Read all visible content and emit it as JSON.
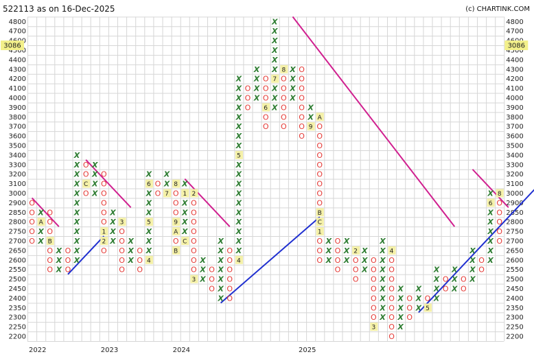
{
  "header": {
    "title": "522113 as on 16-Dec-2025",
    "copyright": "(c) CHARTINK.COM"
  },
  "chart_data": {
    "type": "point-and-figure",
    "box_size": 50,
    "y_ticks": [
      4800,
      4700,
      4600,
      4500,
      4400,
      4300,
      4200,
      4100,
      4000,
      3900,
      3800,
      3700,
      3600,
      3500,
      3400,
      3300,
      3200,
      3100,
      3000,
      2900,
      2850,
      2800,
      2750,
      2700,
      2650,
      2600,
      2550,
      2500,
      2450,
      2400,
      2350,
      2300,
      2250,
      2200
    ],
    "x_labels": [
      {
        "col": 0,
        "label": "2022"
      },
      {
        "col": 8,
        "label": "2023"
      },
      {
        "col": 16,
        "label": "2024"
      },
      {
        "col": 30,
        "label": "2025"
      }
    ],
    "current_price": "3086",
    "current_price_level": 30.5,
    "columns": [
      {
        "type": "O",
        "top": 14,
        "bottom": 10,
        "marks": []
      },
      {
        "type": "X",
        "top": 13,
        "bottom": 10,
        "marks": [
          {
            "level": 12,
            "text": "A"
          }
        ]
      },
      {
        "type": "O",
        "top": 13,
        "bottom": 7,
        "marks": [
          {
            "level": 10,
            "text": "B"
          }
        ]
      },
      {
        "type": "X",
        "top": 9,
        "bottom": 7,
        "marks": []
      },
      {
        "type": "O",
        "top": 9,
        "bottom": 7,
        "marks": []
      },
      {
        "type": "X",
        "top": 19,
        "bottom": 8,
        "marks": []
      },
      {
        "type": "O",
        "top": 18,
        "bottom": 15,
        "marks": [
          {
            "level": 16,
            "text": "C"
          }
        ]
      },
      {
        "type": "X",
        "top": 18,
        "bottom": 15,
        "marks": []
      },
      {
        "type": "O",
        "top": 17,
        "bottom": 9,
        "marks": [
          {
            "level": 11,
            "text": "1"
          },
          {
            "level": 10,
            "text": "2"
          }
        ]
      },
      {
        "type": "X",
        "top": 13,
        "bottom": 10,
        "marks": []
      },
      {
        "type": "O",
        "top": 12,
        "bottom": 7,
        "marks": [
          {
            "level": 12,
            "text": "3"
          }
        ]
      },
      {
        "type": "X",
        "top": 10,
        "bottom": 8,
        "marks": []
      },
      {
        "type": "O",
        "top": 9,
        "bottom": 7,
        "marks": []
      },
      {
        "type": "X",
        "top": 17,
        "bottom": 8,
        "marks": [
          {
            "level": 16,
            "text": "6"
          },
          {
            "level": 12,
            "text": "5"
          },
          {
            "level": 8,
            "text": "4"
          }
        ]
      },
      {
        "type": "O",
        "top": 16,
        "bottom": 15,
        "marks": []
      },
      {
        "type": "X",
        "top": 17,
        "bottom": 15,
        "marks": [
          {
            "level": 15,
            "text": "7"
          }
        ]
      },
      {
        "type": "O",
        "top": 16,
        "bottom": 9,
        "marks": [
          {
            "level": 16,
            "text": "8"
          },
          {
            "level": 12,
            "text": "9"
          },
          {
            "level": 11,
            "text": "A"
          },
          {
            "level": 9,
            "text": "B"
          }
        ]
      },
      {
        "type": "X",
        "top": 16,
        "bottom": 10,
        "marks": [
          {
            "level": 15,
            "text": "1"
          },
          {
            "level": 10,
            "text": "C"
          }
        ]
      },
      {
        "type": "O",
        "top": 15,
        "bottom": 6,
        "marks": [
          {
            "level": 15,
            "text": "2"
          },
          {
            "level": 6,
            "text": "3"
          }
        ]
      },
      {
        "type": "X",
        "top": 8,
        "bottom": 6,
        "marks": []
      },
      {
        "type": "O",
        "top": 7,
        "bottom": 5,
        "marks": []
      },
      {
        "type": "X",
        "top": 10,
        "bottom": 4,
        "marks": []
      },
      {
        "type": "O",
        "top": 9,
        "bottom": 4,
        "marks": []
      },
      {
        "type": "X",
        "top": 27,
        "bottom": 8,
        "marks": [
          {
            "level": 19,
            "text": "5"
          },
          {
            "level": 8,
            "text": "4"
          }
        ]
      },
      {
        "type": "O",
        "top": 26,
        "bottom": 24,
        "marks": []
      },
      {
        "type": "X",
        "top": 28,
        "bottom": 25,
        "marks": []
      },
      {
        "type": "O",
        "top": 27,
        "bottom": 22,
        "marks": [
          {
            "level": 24,
            "text": "6"
          }
        ]
      },
      {
        "type": "X",
        "top": 33,
        "bottom": 24,
        "marks": [
          {
            "level": 27,
            "text": "7"
          }
        ]
      },
      {
        "type": "O",
        "top": 28,
        "bottom": 22,
        "marks": [
          {
            "level": 28,
            "text": "8"
          }
        ]
      },
      {
        "type": "X",
        "top": 28,
        "bottom": 25,
        "marks": []
      },
      {
        "type": "O",
        "top": 28,
        "bottom": 21,
        "marks": []
      },
      {
        "type": "X",
        "top": 24,
        "bottom": 22,
        "marks": [
          {
            "level": 22,
            "text": "9"
          }
        ]
      },
      {
        "type": "O",
        "top": 23,
        "bottom": 8,
        "marks": [
          {
            "level": 23,
            "text": "A"
          },
          {
            "level": 13,
            "text": "B"
          },
          {
            "level": 12,
            "text": "C"
          },
          {
            "level": 11,
            "text": "1"
          }
        ]
      },
      {
        "type": "X",
        "top": 10,
        "bottom": 8,
        "marks": []
      },
      {
        "type": "O",
        "top": 10,
        "bottom": 7,
        "marks": []
      },
      {
        "type": "X",
        "top": 10,
        "bottom": 8,
        "marks": []
      },
      {
        "type": "O",
        "top": 9,
        "bottom": 6,
        "marks": [
          {
            "level": 9,
            "text": "2"
          }
        ]
      },
      {
        "type": "X",
        "top": 9,
        "bottom": 7,
        "marks": []
      },
      {
        "type": "O",
        "top": 8,
        "bottom": 1,
        "marks": [
          {
            "level": 1,
            "text": "3"
          }
        ]
      },
      {
        "type": "X",
        "top": 10,
        "bottom": 2,
        "marks": []
      },
      {
        "type": "O",
        "top": 9,
        "bottom": 0,
        "marks": [
          {
            "level": 9,
            "text": "4"
          }
        ]
      },
      {
        "type": "X",
        "top": 5,
        "bottom": 1,
        "marks": []
      },
      {
        "type": "O",
        "top": 4,
        "bottom": 2,
        "marks": []
      },
      {
        "type": "X",
        "top": 5,
        "bottom": 3,
        "marks": []
      },
      {
        "type": "O",
        "top": 4,
        "bottom": 3,
        "marks": [
          {
            "level": 3,
            "text": "5"
          }
        ]
      },
      {
        "type": "X",
        "top": 7,
        "bottom": 4,
        "marks": []
      },
      {
        "type": "O",
        "top": 6,
        "bottom": 5,
        "marks": []
      },
      {
        "type": "X",
        "top": 7,
        "bottom": 5,
        "marks": []
      },
      {
        "type": "O",
        "top": 6,
        "bottom": 5,
        "marks": []
      },
      {
        "type": "X",
        "top": 9,
        "bottom": 6,
        "marks": []
      },
      {
        "type": "O",
        "top": 8,
        "bottom": 7,
        "marks": []
      },
      {
        "type": "X",
        "top": 15,
        "bottom": 8,
        "marks": [
          {
            "level": 14,
            "text": "6"
          }
        ]
      },
      {
        "type": "O",
        "top": 15,
        "bottom": 10,
        "marks": [
          {
            "level": 15,
            "text": "8"
          }
        ]
      },
      {
        "type": "X",
        "top": 12,
        "bottom": 10,
        "marks": []
      },
      {
        "type": "O",
        "top": 11,
        "bottom": 10,
        "marks": []
      },
      {
        "type": "X",
        "top": 12,
        "bottom": 10,
        "marks": []
      },
      {
        "type": "O",
        "top": 11,
        "bottom": 9,
        "marks": []
      },
      {
        "type": "X",
        "top": 12,
        "bottom": 10,
        "marks": [
          {
            "level": 13,
            "text": "B"
          }
        ]
      },
      {
        "type": "O",
        "top": 12,
        "bottom": 10,
        "marks": [
          {
            "level": 10,
            "text": "A"
          },
          {
            "level": 10,
            "text": "O"
          }
        ]
      },
      {
        "type": "X",
        "top": 12,
        "bottom": 11,
        "marks": []
      },
      {
        "type": "O",
        "top": 12,
        "bottom": 10,
        "marks": []
      }
    ],
    "trendlines": [
      {
        "color": "#d01f8f",
        "from": [
          0.5,
          14.5
        ],
        "to": [
          3.5,
          11.5
        ]
      },
      {
        "color": "#d01f8f",
        "from": [
          6.5,
          18.5
        ],
        "to": [
          11.5,
          13.5
        ]
      },
      {
        "color": "#d01f8f",
        "from": [
          17.5,
          16.5
        ],
        "to": [
          22.5,
          11.5
        ]
      },
      {
        "color": "#d01f8f",
        "from": [
          29.5,
          33.5
        ],
        "to": [
          47.5,
          11.5
        ]
      },
      {
        "color": "#d01f8f",
        "from": [
          49.5,
          17.5
        ],
        "to": [
          53.5,
          13.5
        ]
      },
      {
        "color": "#1f2fd0",
        "from": [
          4.5,
          6.5
        ],
        "to": [
          8.5,
          10.5
        ]
      },
      {
        "color": "#1f2fd0",
        "from": [
          21.5,
          3.5
        ],
        "to": [
          32.5,
          12.5
        ]
      },
      {
        "color": "#1f2fd0",
        "from": [
          43.5,
          2.5
        ],
        "to": [
          56.5,
          15.5
        ]
      }
    ],
    "colors": {
      "x": "#2e7d32",
      "o": "#e53935",
      "price_box": "#f3f08a",
      "marker_box": "#f5f1a8"
    }
  }
}
